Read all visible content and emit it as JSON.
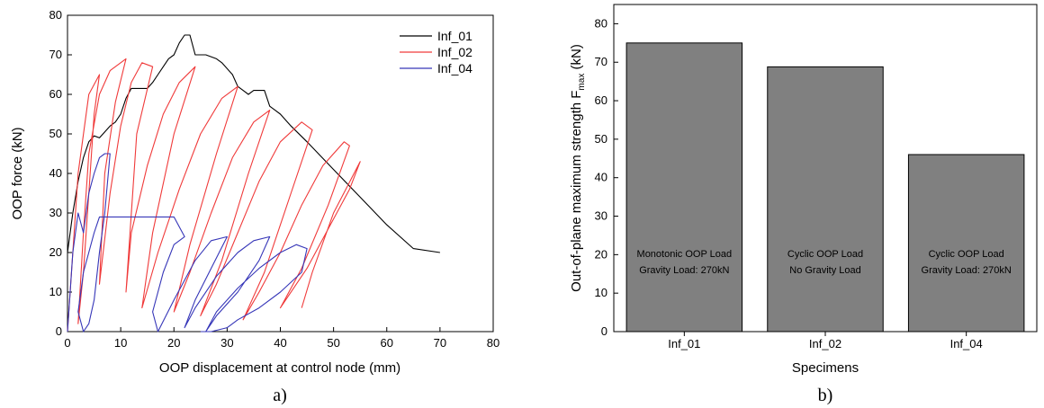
{
  "chart_data": [
    {
      "type": "line",
      "panel_label": "a)",
      "xlabel": "OOP displacement at control node (mm)",
      "ylabel": "OOP force (kN)",
      "xlim": [
        0,
        80
      ],
      "ylim": [
        0,
        80
      ],
      "xticks": [
        0,
        10,
        20,
        30,
        40,
        50,
        60,
        70,
        80
      ],
      "yticks": [
        0,
        10,
        20,
        30,
        40,
        50,
        60,
        70,
        80
      ],
      "legend_position": "top-right",
      "series": [
        {
          "name": "Inf_01",
          "color": "#000000",
          "x": [
            0,
            1,
            2,
            3,
            4,
            5,
            6,
            8,
            9,
            10,
            11,
            12,
            15,
            16,
            17,
            18,
            19,
            20,
            21,
            22,
            23,
            24,
            25,
            26,
            28,
            29,
            31,
            32,
            33,
            34,
            35,
            36,
            37,
            38,
            39,
            40,
            42,
            45,
            50,
            55,
            60,
            65,
            70
          ],
          "y": [
            20,
            30,
            38,
            44,
            48,
            49.5,
            49,
            52,
            53,
            55,
            59,
            61.5,
            61.5,
            63,
            65,
            67,
            69,
            70,
            73,
            75,
            75,
            70,
            70,
            70,
            69,
            68,
            65,
            62,
            61,
            60,
            61,
            61,
            61,
            57,
            56,
            55,
            52,
            48,
            41,
            34,
            27,
            21,
            20
          ]
        },
        {
          "name": "Inf_02",
          "color": "#f03a3a",
          "x": [
            0,
            1,
            2,
            4,
            6,
            5,
            4,
            3,
            2,
            3,
            4,
            6,
            8,
            10,
            11,
            9,
            7,
            6,
            8,
            10,
            12,
            14,
            16,
            13,
            11,
            12,
            15,
            18,
            21,
            24,
            20,
            16,
            14,
            17,
            21,
            25,
            29,
            32,
            28,
            23,
            20,
            23,
            27,
            31,
            35,
            38,
            34,
            29,
            25,
            28,
            32,
            36,
            40,
            44,
            46,
            42,
            37,
            33,
            36,
            40,
            44,
            48,
            52,
            53,
            49,
            44,
            40,
            41,
            45,
            49,
            53,
            55,
            50,
            46,
            44
          ],
          "y": [
            0,
            20,
            40,
            60,
            65,
            55,
            35,
            15,
            2,
            25,
            45,
            60,
            66,
            68,
            69,
            58,
            40,
            12,
            35,
            52,
            63,
            68,
            67,
            50,
            10,
            25,
            42,
            55,
            63,
            67,
            50,
            25,
            6,
            20,
            36,
            50,
            59,
            62,
            45,
            22,
            5,
            15,
            30,
            44,
            53,
            56,
            40,
            18,
            4,
            12,
            25,
            38,
            48,
            53,
            51,
            35,
            15,
            3,
            10,
            20,
            32,
            42,
            48,
            47,
            32,
            16,
            6,
            8,
            16,
            26,
            36,
            43,
            30,
            15,
            6
          ]
        },
        {
          "name": "Inf_04",
          "color": "#3636b8",
          "x": [
            0,
            1,
            2,
            3,
            4,
            5,
            6,
            7,
            8,
            7,
            6,
            5,
            4,
            3,
            2,
            3,
            5,
            6,
            7,
            8,
            10,
            15,
            20,
            22,
            20,
            18,
            16,
            17,
            20,
            24,
            27,
            30,
            27,
            24,
            22,
            24,
            28,
            32,
            35,
            38,
            36,
            32,
            28,
            26,
            28,
            32,
            36,
            40,
            43,
            45,
            44,
            40,
            36,
            32,
            30,
            27,
            25
          ],
          "y": [
            0,
            20,
            30,
            25,
            35,
            40,
            44,
            45,
            45,
            30,
            20,
            8,
            2,
            0,
            5,
            15,
            25,
            29,
            29,
            29,
            29,
            29,
            29,
            24,
            22,
            15,
            5,
            0,
            8,
            18,
            23,
            24,
            16,
            8,
            1,
            6,
            14,
            20,
            23,
            24,
            18,
            10,
            4,
            0,
            5,
            11,
            16,
            20,
            22,
            21,
            15,
            10,
            6,
            3,
            1,
            0,
            0
          ]
        }
      ]
    },
    {
      "type": "bar",
      "panel_label": "b)",
      "xlabel": "Specimens",
      "ylabel": "Out-of-plane maximum strength F",
      "ylabel_sub": "max",
      "ylabel_unit": " (kN)",
      "ylim": [
        0,
        85
      ],
      "yticks": [
        0,
        10,
        20,
        30,
        40,
        50,
        60,
        70,
        80
      ],
      "categories": [
        "Inf_01",
        "Inf_02",
        "Inf_04"
      ],
      "values": [
        75,
        68.8,
        46
      ],
      "bar_color": "#808080",
      "annotations": [
        [
          "Monotonic OOP Load",
          "Gravity Load: 270kN"
        ],
        [
          "Cyclic OOP Load",
          "No Gravity Load"
        ],
        [
          "Cyclic OOP Load",
          "Gravity Load: 270kN"
        ]
      ]
    }
  ]
}
